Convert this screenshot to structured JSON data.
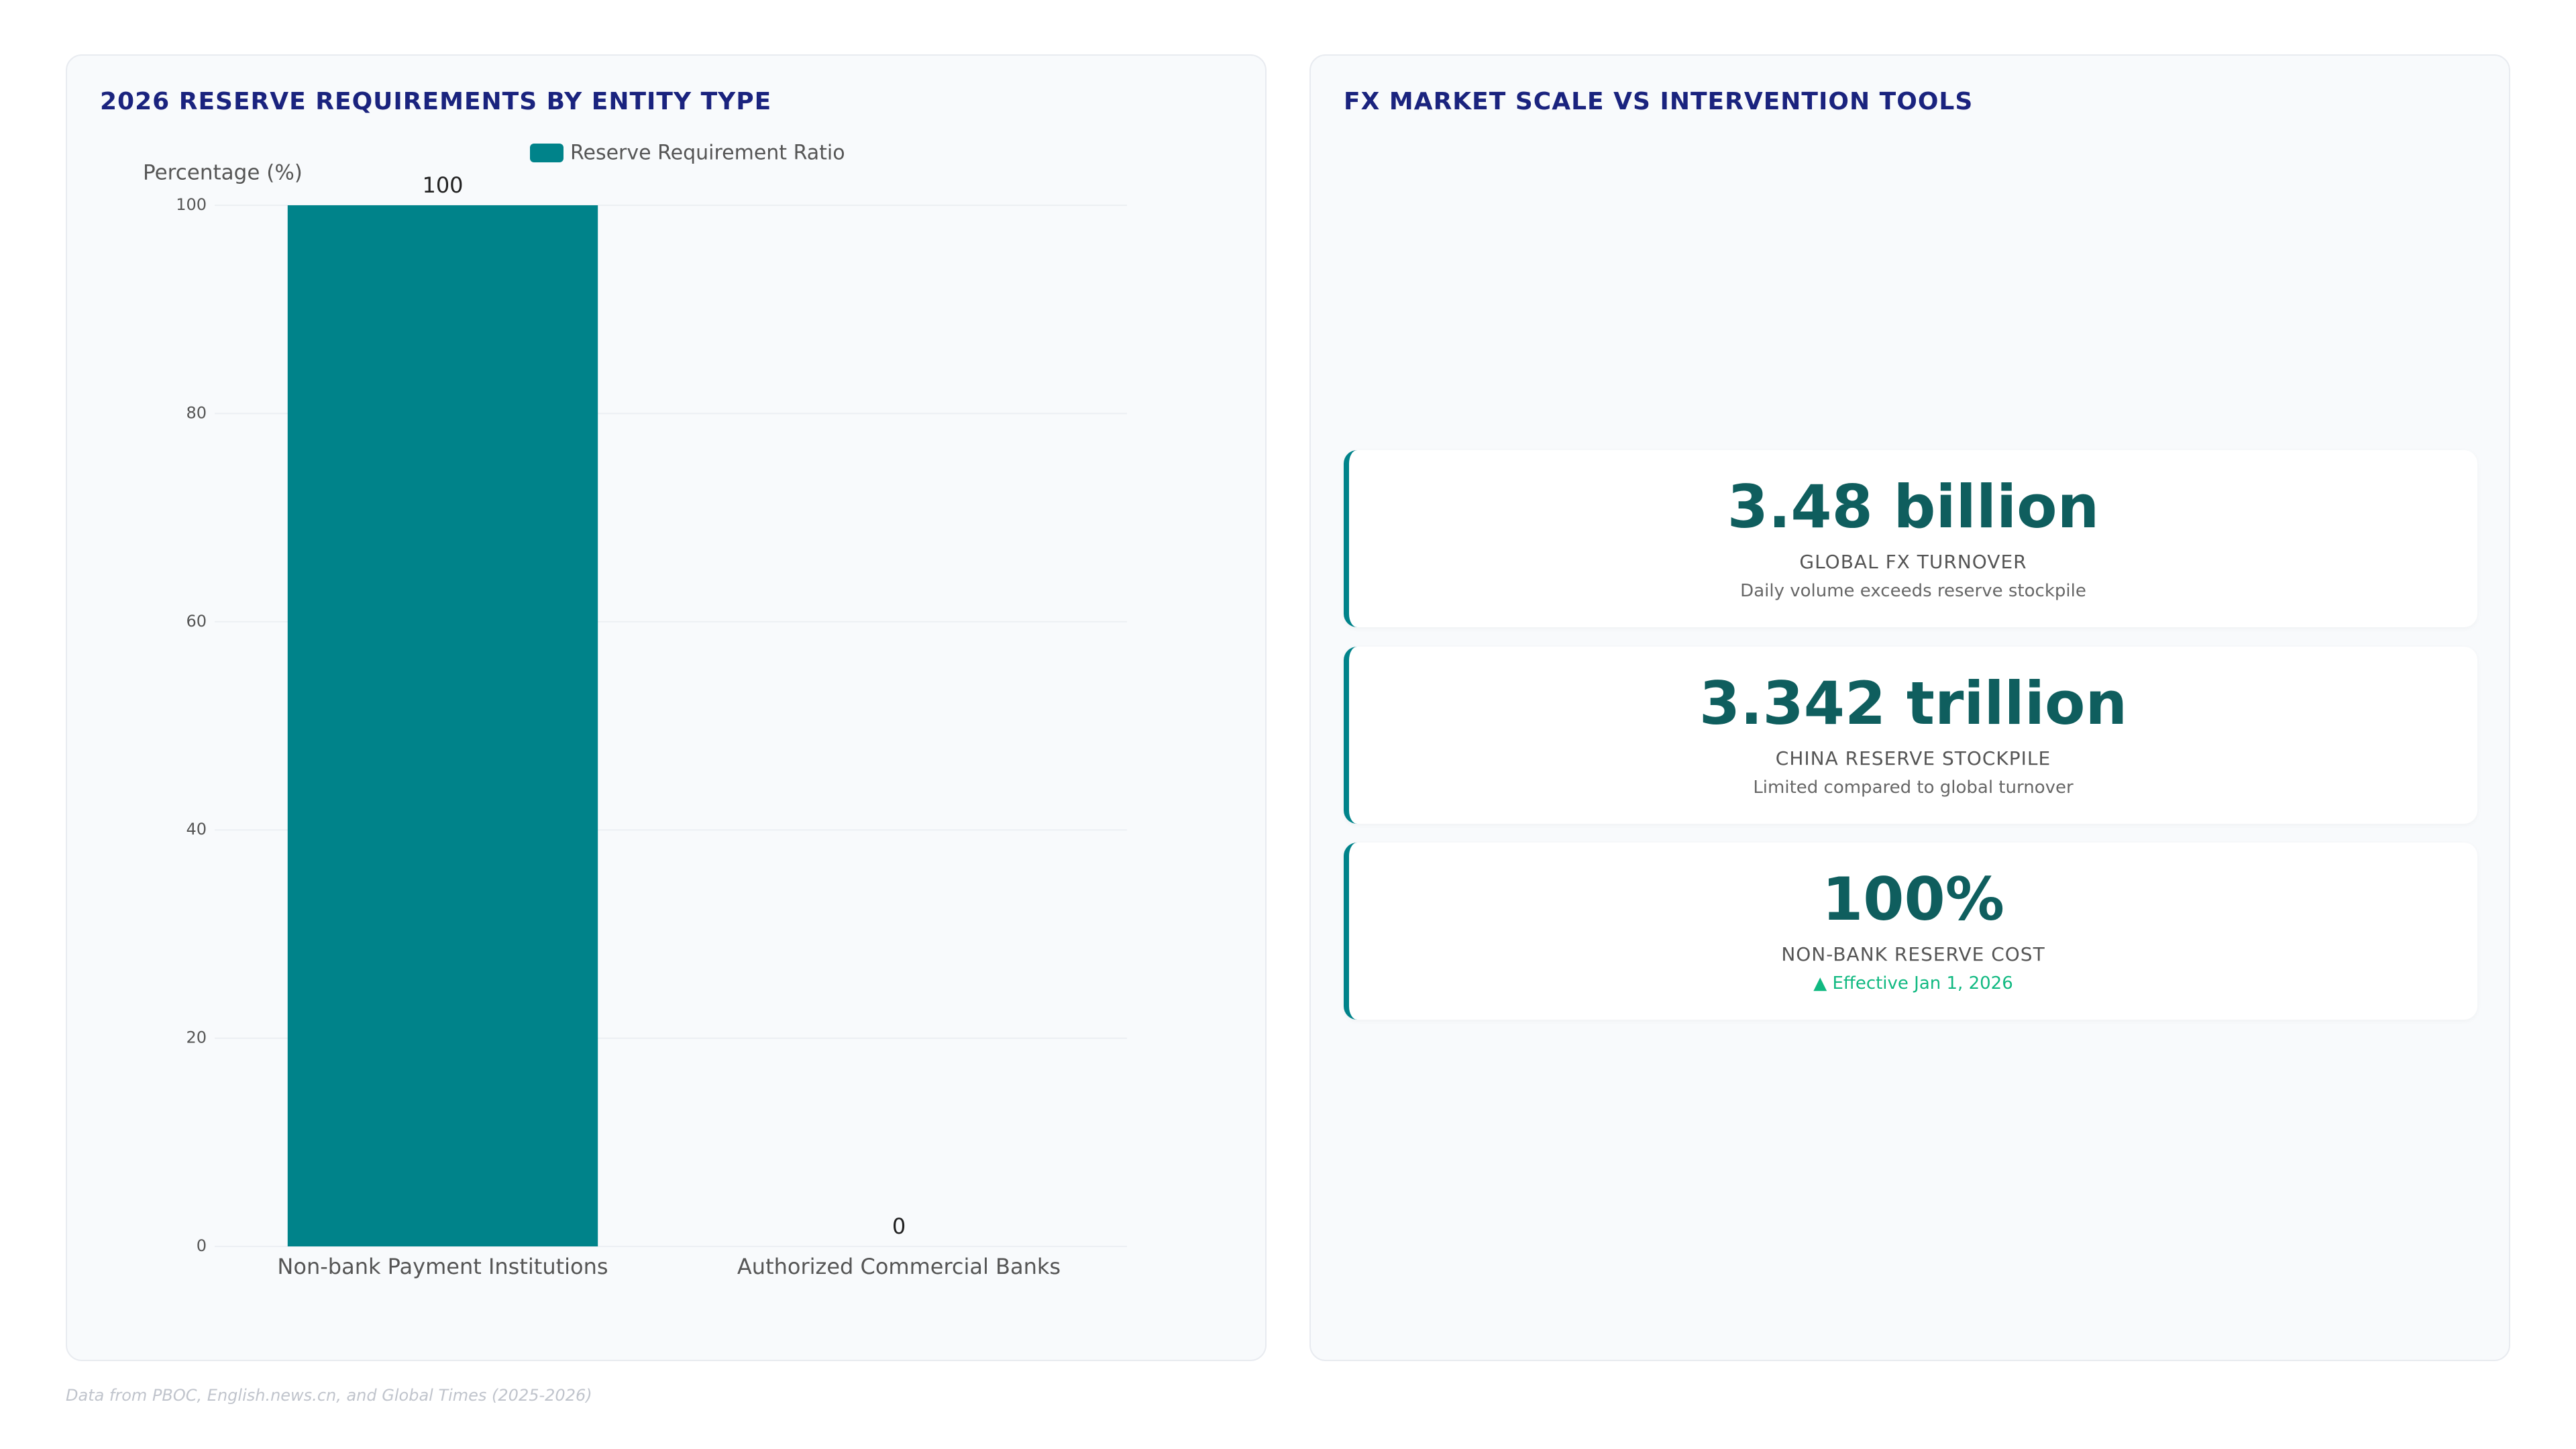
{
  "chart_data": {
    "type": "bar",
    "title": "2026 RESERVE REQUIREMENTS BY ENTITY TYPE",
    "y_label": "Percentage (%)",
    "categories": [
      "Non-bank Payment Institutions",
      "Authorized Commercial Banks"
    ],
    "series": [
      {
        "name": "Reserve Requirement Ratio",
        "color": "#00838a",
        "values": [
          100,
          0
        ]
      }
    ],
    "ylim": [
      0,
      100
    ],
    "yticks": [
      0,
      20,
      40,
      60,
      80,
      100
    ],
    "grid": true,
    "legend": "top"
  },
  "panel": {
    "title": "FX MARKET SCALE VS INTERVENTION TOOLS",
    "kpis": [
      {
        "value": "3.48 billion",
        "label": "GLOBAL FX TURNOVER",
        "note": "Daily volume exceeds reserve stockpile"
      },
      {
        "value": "3.342 trillion",
        "label": "CHINA RESERVE STOCKPILE",
        "note": "Limited compared to global turnover"
      },
      {
        "value": "100%",
        "label": "NON-BANK RESERVE COST",
        "note": "▲ Effective Jan 1, 2026"
      }
    ]
  },
  "footer": "Data from PBOC, English.news.cn, and Global Times (2025-2026)"
}
